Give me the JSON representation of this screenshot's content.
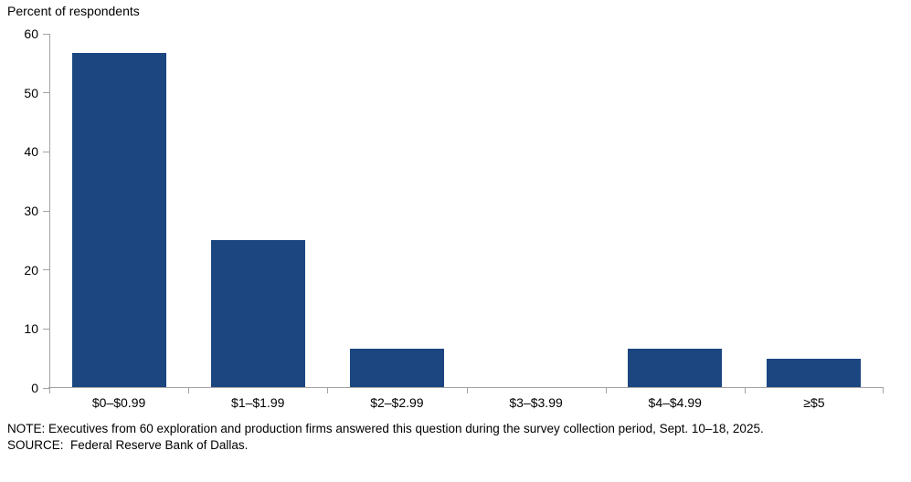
{
  "chart_data": {
    "type": "bar",
    "categories": [
      "$0–$0.99",
      "$1–$1.99",
      "$2–$2.99",
      "$3–$3.99",
      "$4–$4.99",
      "≥$5"
    ],
    "values": [
      56.7,
      25,
      6.7,
      0,
      6.7,
      5
    ],
    "title": "",
    "xlabel": "",
    "ylabel": "Percent of respondents",
    "ylim": [
      0,
      60
    ],
    "y_ticks": [
      0,
      10,
      20,
      30,
      40,
      50,
      60
    ],
    "grid": false,
    "legend": "none",
    "colors": {
      "bar": "#1b4680",
      "axis": "#a3a3a3",
      "text": "#000000"
    }
  },
  "footnotes": {
    "note": "NOTE: Executives from 60 exploration and production firms answered this question during the survey collection period, Sept. 10–18, 2025.",
    "source": "SOURCE:  Federal Reserve Bank of Dallas."
  }
}
